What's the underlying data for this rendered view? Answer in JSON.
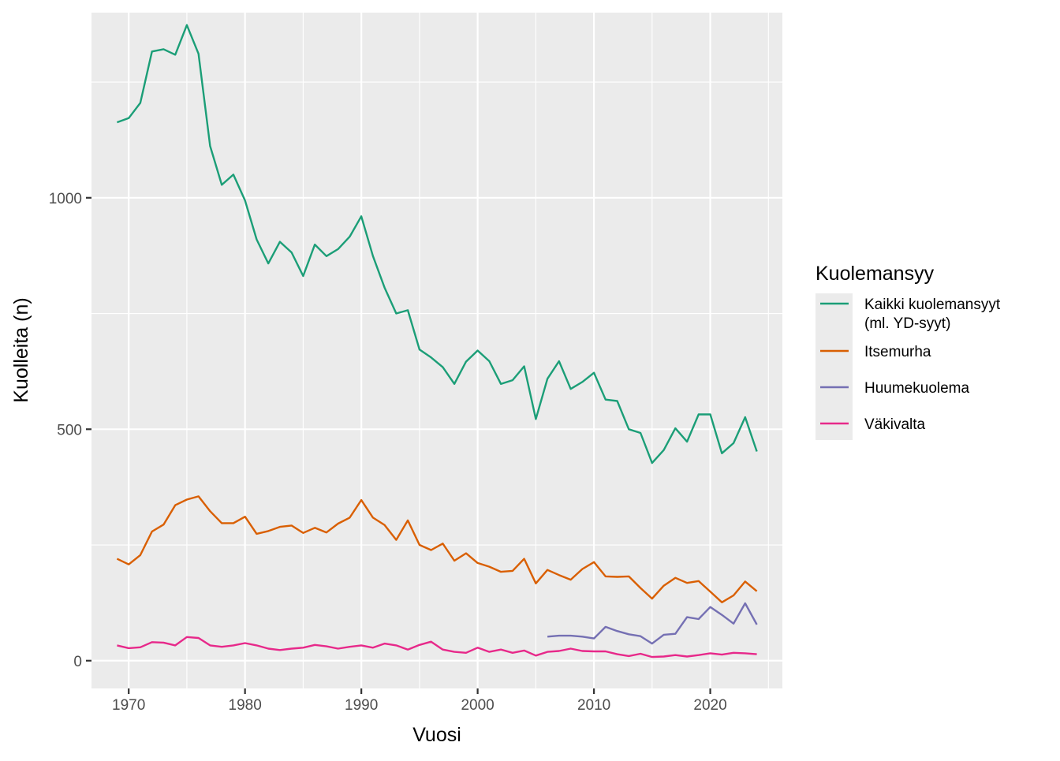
{
  "chart_data": {
    "type": "line",
    "xlabel": "Vuosi",
    "ylabel": "Kuolleita (n)",
    "xlim": [
      1966.8,
      2026.2
    ],
    "ylim": [
      -60,
      1400
    ],
    "x_ticks": [
      1970,
      1980,
      1990,
      2000,
      2010,
      2020
    ],
    "y_ticks": [
      0,
      500,
      1000
    ],
    "grid": true,
    "legend": {
      "title": "Kuolemansyy",
      "position": "right"
    },
    "series": [
      {
        "name": "Kaikki kuolemansyyt\n(ml. YD-syyt)",
        "color": "#1B9E77",
        "x": [
          1969,
          1970,
          1971,
          1972,
          1973,
          1974,
          1975,
          1976,
          1977,
          1978,
          1979,
          1980,
          1981,
          1982,
          1983,
          1984,
          1985,
          1986,
          1987,
          1988,
          1989,
          1990,
          1991,
          1992,
          1993,
          1994,
          1995,
          1996,
          1997,
          1998,
          1999,
          2000,
          2001,
          2002,
          2003,
          2004,
          2005,
          2006,
          2007,
          2008,
          2009,
          2010,
          2011,
          2012,
          2013,
          2014,
          2015,
          2016,
          2017,
          2018,
          2019,
          2020,
          2021,
          2022,
          2023,
          2024
        ],
        "values": [
          1163,
          1172,
          1205,
          1316,
          1321,
          1309,
          1373,
          1311,
          1112,
          1028,
          1050,
          994,
          910,
          858,
          905,
          882,
          831,
          899,
          874,
          889,
          916,
          960,
          874,
          806,
          750,
          757,
          672,
          655,
          634,
          598,
          646,
          670,
          647,
          598,
          606,
          636,
          522,
          609,
          647,
          587,
          602,
          622,
          564,
          561,
          500,
          492,
          427,
          455,
          502,
          473,
          532,
          532,
          448,
          470,
          526,
          452
        ]
      },
      {
        "name": "Itsemurha",
        "color": "#D95F02",
        "x": [
          1969,
          1970,
          1971,
          1972,
          1973,
          1974,
          1975,
          1976,
          1977,
          1978,
          1979,
          1980,
          1981,
          1982,
          1983,
          1984,
          1985,
          1986,
          1987,
          1988,
          1989,
          1990,
          1991,
          1992,
          1993,
          1994,
          1995,
          1996,
          1997,
          1998,
          1999,
          2000,
          2001,
          2002,
          2003,
          2004,
          2005,
          2006,
          2007,
          2008,
          2009,
          2010,
          2011,
          2012,
          2013,
          2014,
          2015,
          2016,
          2017,
          2018,
          2019,
          2020,
          2021,
          2022,
          2023,
          2024
        ],
        "values": [
          220,
          208,
          228,
          279,
          294,
          336,
          348,
          355,
          323,
          297,
          297,
          311,
          274,
          280,
          289,
          292,
          276,
          287,
          277,
          296,
          309,
          347,
          309,
          293,
          261,
          303,
          250,
          239,
          253,
          216,
          232,
          211,
          203,
          192,
          194,
          220,
          167,
          196,
          185,
          175,
          198,
          213,
          182,
          181,
          182,
          157,
          134,
          162,
          179,
          168,
          172,
          149,
          126,
          141,
          171,
          150
        ]
      },
      {
        "name": "Huumekuolema",
        "color": "#7570B3",
        "x": [
          2006,
          2007,
          2008,
          2009,
          2010,
          2011,
          2012,
          2013,
          2014,
          2015,
          2016,
          2017,
          2018,
          2019,
          2020,
          2021,
          2022,
          2023,
          2024
        ],
        "values": [
          52,
          54,
          54,
          52,
          48,
          73,
          64,
          57,
          53,
          37,
          56,
          58,
          94,
          90,
          116,
          99,
          80,
          124,
          78
        ]
      },
      {
        "name": "Väkivalta",
        "color": "#E7298A",
        "x": [
          1969,
          1970,
          1971,
          1972,
          1973,
          1974,
          1975,
          1976,
          1977,
          1978,
          1979,
          1980,
          1981,
          1982,
          1983,
          1984,
          1985,
          1986,
          1987,
          1988,
          1989,
          1990,
          1991,
          1992,
          1993,
          1994,
          1995,
          1996,
          1997,
          1998,
          1999,
          2000,
          2001,
          2002,
          2003,
          2004,
          2005,
          2006,
          2007,
          2008,
          2009,
          2010,
          2011,
          2012,
          2013,
          2014,
          2015,
          2016,
          2017,
          2018,
          2019,
          2020,
          2021,
          2022,
          2023,
          2024
        ],
        "values": [
          33,
          27,
          29,
          40,
          39,
          33,
          51,
          49,
          33,
          30,
          33,
          38,
          33,
          26,
          23,
          26,
          28,
          34,
          31,
          26,
          30,
          33,
          28,
          37,
          33,
          24,
          34,
          41,
          24,
          19,
          17,
          28,
          19,
          24,
          17,
          22,
          11,
          19,
          21,
          26,
          21,
          20,
          20,
          14,
          10,
          15,
          8,
          9,
          12,
          9,
          12,
          16,
          13,
          17,
          16,
          14
        ]
      }
    ]
  }
}
